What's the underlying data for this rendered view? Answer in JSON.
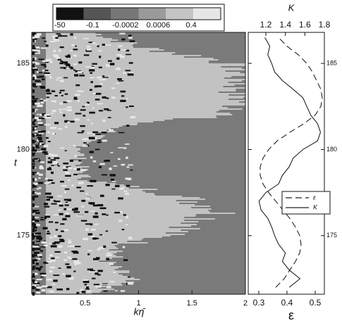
{
  "chart_data": [
    {
      "type": "heatmap",
      "xlabel": "kη̄",
      "ylabel": "t",
      "xlim": [
        0,
        2
      ],
      "xticks": [
        0.5,
        1,
        1.5,
        2
      ],
      "ylim": [
        171.6,
        186.8
      ],
      "yticks": [
        175,
        180,
        185
      ],
      "colorbar": {
        "ticks": [
          -50,
          -0.1,
          -0.0002,
          0.0006,
          0.4
        ],
        "colors": [
          "#111111",
          "#555555",
          "#777777",
          "#9a9a9a",
          "#c4c4c4",
          "#e6e6e6"
        ]
      }
    },
    {
      "type": "line",
      "xlabel": "ε",
      "x2label": "K",
      "xlim": [
        0.2625,
        0.5325
      ],
      "xticks": [
        0.3,
        0.4,
        0.5
      ],
      "x2lim": [
        1.019,
        1.8
      ],
      "x2ticks": [
        1.2,
        1.4,
        1.6,
        1.8
      ],
      "ylim": [
        171.6,
        186.8
      ],
      "yticks": [
        175,
        180,
        185
      ],
      "legend": "lower-right",
      "y": [
        172,
        172.5,
        173,
        173.5,
        174,
        174.5,
        175,
        175.5,
        176,
        176.5,
        177,
        177.5,
        178,
        178.5,
        179,
        179.5,
        180,
        180.5,
        181,
        181.5,
        182,
        182.5,
        183,
        183.5,
        184,
        184.5,
        185,
        185.5,
        186,
        186.5
      ],
      "series": [
        {
          "name": "ε",
          "color": "#222222",
          "dash": true,
          "values": [
            0.36,
            0.39,
            0.41,
            0.43,
            0.445,
            0.45,
            0.445,
            0.43,
            0.41,
            0.385,
            0.36,
            0.335,
            0.315,
            0.305,
            0.305,
            0.315,
            0.335,
            0.365,
            0.41,
            0.46,
            0.5,
            0.52,
            0.525,
            0.52,
            0.505,
            0.49,
            0.47,
            0.44,
            0.4,
            0.37
          ]
        },
        {
          "name": "K",
          "color": "#222222",
          "axis": "x2",
          "values": [
            1.44,
            1.55,
            1.44,
            1.37,
            1.4,
            1.33,
            1.29,
            1.26,
            1.22,
            1.15,
            1.13,
            1.2,
            1.33,
            1.37,
            1.44,
            1.48,
            1.58,
            1.73,
            1.76,
            1.73,
            1.66,
            1.62,
            1.58,
            1.48,
            1.37,
            1.29,
            1.26,
            1.22,
            1.24,
            1.19
          ]
        }
      ]
    }
  ]
}
